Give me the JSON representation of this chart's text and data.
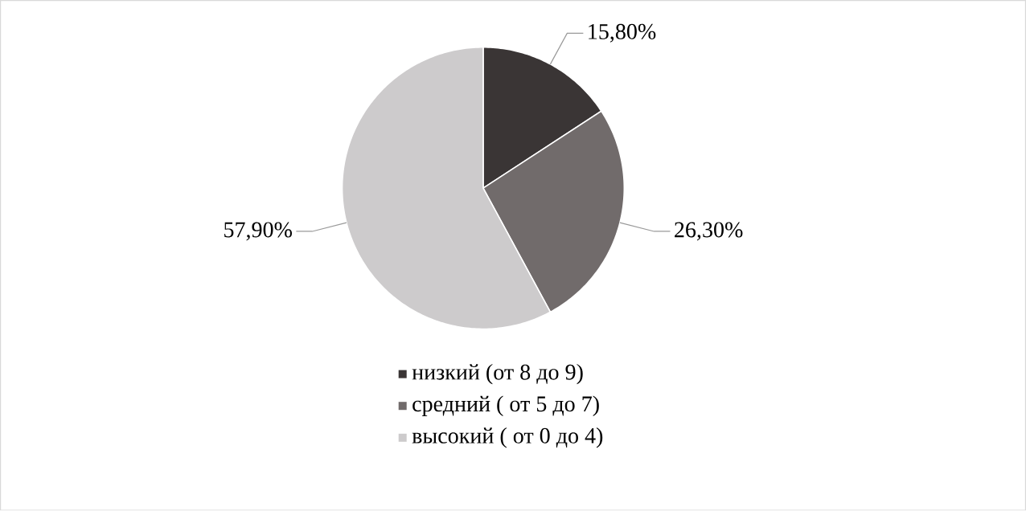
{
  "chart_data": {
    "type": "pie",
    "categories": [
      "низкий (от 8 до 9)",
      "средний ( от 5 до 7)",
      "высокий ( от 0 до 4)"
    ],
    "values": [
      15.8,
      26.3,
      57.9
    ],
    "value_labels": [
      "15,80%",
      "26,30%",
      "57,90%"
    ],
    "colors": [
      "#3a3535",
      "#716b6b",
      "#cdcbcc"
    ],
    "legend": "bottom"
  }
}
